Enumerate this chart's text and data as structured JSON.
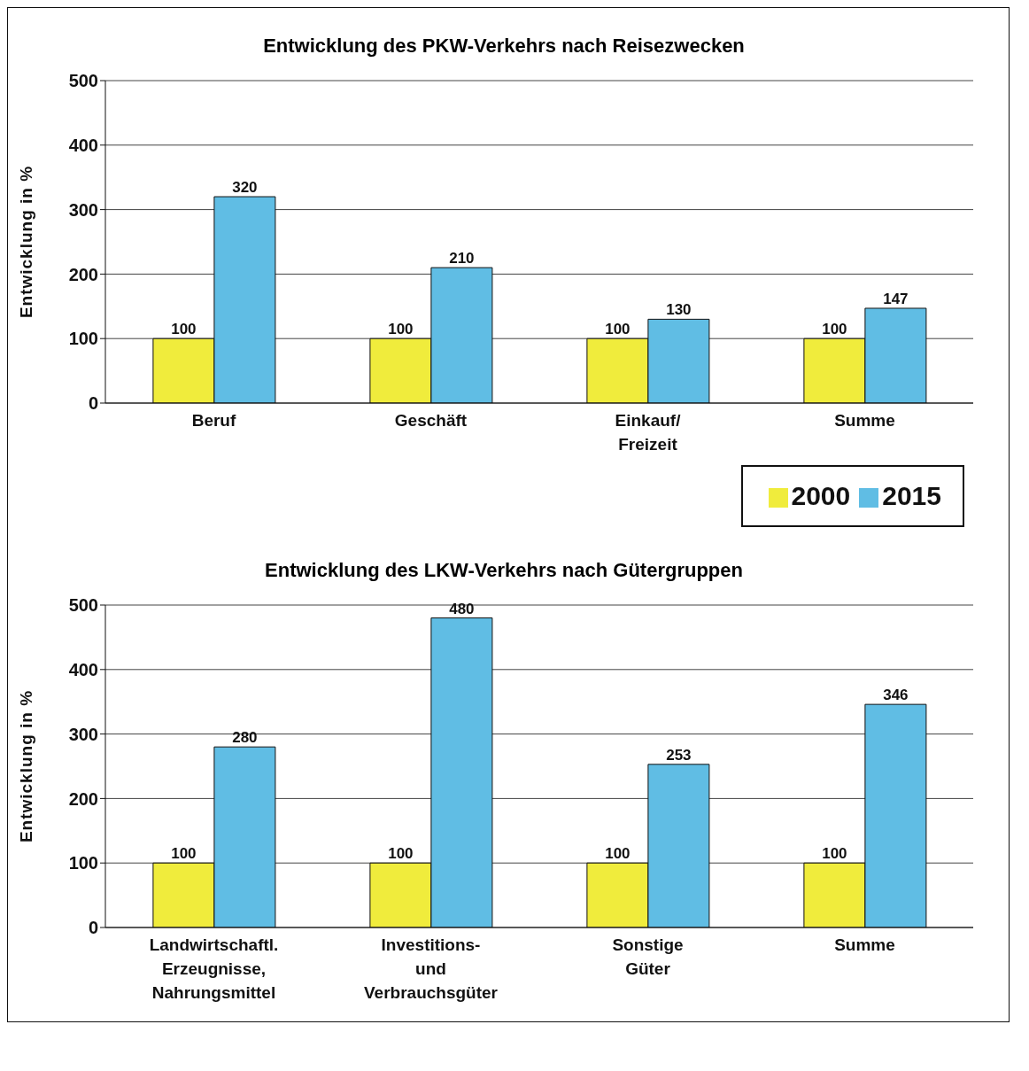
{
  "chart_data": [
    {
      "type": "bar",
      "title": "Entwicklung des PKW-Verkehrs nach Reisezwecken",
      "ylabel": "Entwicklung in %",
      "categories": [
        "Beruf",
        "Geschäft",
        "Einkauf/\nFreizeit",
        "Summe"
      ],
      "series": [
        {
          "name": "2000",
          "color": "#f0ec3c",
          "values": [
            100,
            100,
            100,
            100
          ]
        },
        {
          "name": "2015",
          "color": "#60bde4",
          "values": [
            320,
            210,
            130,
            147
          ]
        }
      ],
      "ylim": [
        0,
        500
      ],
      "yticks": [
        0,
        100,
        200,
        300,
        400,
        500
      ],
      "grid": "y",
      "data_labels": true,
      "legend": "bottom right"
    },
    {
      "type": "bar",
      "title": "Entwicklung des LKW-Verkehrs nach Gütergruppen",
      "ylabel": "Entwicklung in %",
      "categories": [
        "Landwirtschaftl.\nErzeugnisse,\nNahrungsmittel",
        "Investitions-\nund\nVerbrauchsgüter",
        "Sonstige\nGüter",
        "Summe"
      ],
      "series": [
        {
          "color": "#f0ec3c",
          "values": [
            100,
            100,
            100,
            100
          ]
        },
        {
          "color": "#60bde4",
          "values": [
            280,
            480,
            253,
            346
          ]
        }
      ],
      "ylim": [
        0,
        500
      ],
      "yticks": [
        0,
        100,
        200,
        300,
        400,
        500
      ],
      "grid": "y",
      "data_labels": true
    }
  ]
}
